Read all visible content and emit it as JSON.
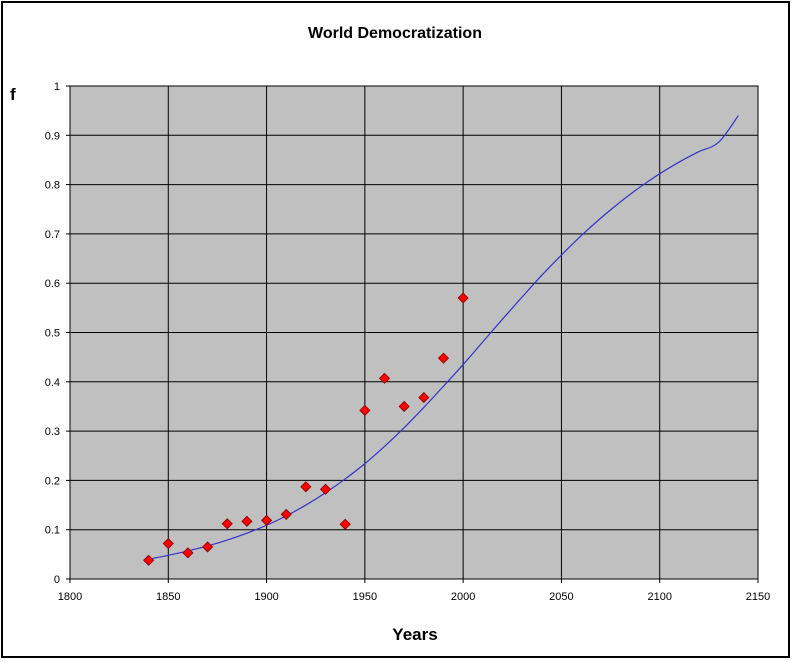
{
  "chart_data": {
    "type": "scatter",
    "title": "World Democratization",
    "xlabel": "Years",
    "ylabel": "f",
    "xlim": [
      1800,
      2150
    ],
    "ylim": [
      0,
      1
    ],
    "x_ticks": [
      "1800",
      "1850",
      "1900",
      "1950",
      "2000",
      "2050",
      "2100",
      "2150"
    ],
    "y_ticks": [
      "0",
      "0.1",
      "0.2",
      "0.3",
      "0.4",
      "0.5",
      "0.6",
      "0.7",
      "0.8",
      "0.9",
      "1"
    ],
    "grid": true,
    "plot_background": "#c0c0c0",
    "series": [
      {
        "type": "scatter",
        "marker": "diamond",
        "color": "#ff0000",
        "points": [
          [
            1840,
            0.038
          ],
          [
            1850,
            0.072
          ],
          [
            1860,
            0.053
          ],
          [
            1870,
            0.065
          ],
          [
            1880,
            0.112
          ],
          [
            1890,
            0.117
          ],
          [
            1900,
            0.119
          ],
          [
            1910,
            0.131
          ],
          [
            1920,
            0.187
          ],
          [
            1930,
            0.182
          ],
          [
            1940,
            0.111
          ],
          [
            1950,
            0.342
          ],
          [
            1960,
            0.407
          ],
          [
            1970,
            0.35
          ],
          [
            1980,
            0.368
          ],
          [
            1990,
            0.448
          ],
          [
            2000,
            0.57
          ]
        ]
      },
      {
        "type": "line",
        "color": "#3333cc",
        "curve": "logistic",
        "x": [
          1840,
          1850,
          1860,
          1870,
          1880,
          1890,
          1900,
          1910,
          1920,
          1930,
          1940,
          1950,
          1960,
          1970,
          1980,
          1990,
          2000,
          2010,
          2020,
          2030,
          2040,
          2050,
          2060,
          2070,
          2080,
          2090,
          2100,
          2110,
          2120,
          2130,
          2140
        ],
        "y": [
          0.04,
          0.048,
          0.057,
          0.067,
          0.079,
          0.093,
          0.109,
          0.128,
          0.15,
          0.175,
          0.203,
          0.234,
          0.269,
          0.307,
          0.348,
          0.391,
          0.435,
          0.481,
          0.527,
          0.572,
          0.616,
          0.657,
          0.696,
          0.732,
          0.765,
          0.795,
          0.822,
          0.846,
          0.867,
          0.886,
          0.94
        ]
      }
    ]
  }
}
